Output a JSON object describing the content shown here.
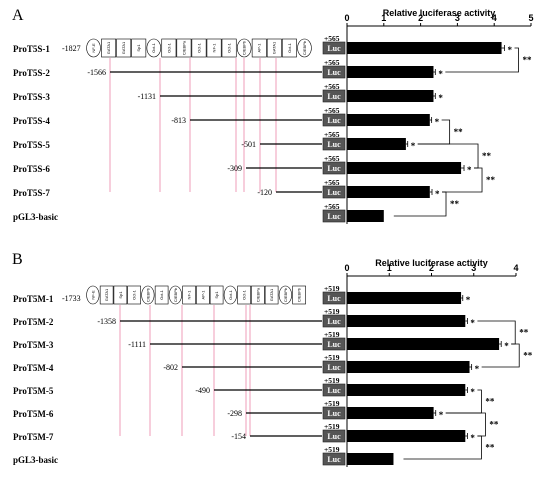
{
  "chart_data": [
    {
      "type": "bar",
      "panel_label": "A",
      "title": "Relative luciferase activity",
      "xlim": [
        0,
        5
      ],
      "ticks": [
        "0",
        "1",
        "2",
        "3",
        "4",
        "5"
      ],
      "reporter": "Luc",
      "end_label": "+565",
      "categories": [
        "ProT5S-1",
        "ProT5S-2",
        "ProT5S-3",
        "ProT5S-4",
        "ProT5S-5",
        "ProT5S-6",
        "ProT5S-7",
        "pGL3-basic"
      ],
      "start_positions": [
        "-1827",
        "-1566",
        "-1131",
        "-813",
        "-501",
        "-309",
        "-120",
        ""
      ],
      "values": [
        4.2,
        2.35,
        2.35,
        2.25,
        1.6,
        3.1,
        2.25,
        1.0
      ],
      "errors": [
        0.08,
        0.05,
        0.05,
        0.05,
        0.05,
        0.08,
        0.06,
        0.0
      ],
      "bar_marks": [
        "*",
        "*",
        "*",
        "*",
        "*",
        "*",
        "*",
        ""
      ],
      "significance_pairs": [
        {
          "from": 0,
          "to": 1,
          "label": "**"
        },
        {
          "from": 3,
          "to": 4,
          "label": "**"
        },
        {
          "from": 4,
          "to": 5,
          "label": "**"
        },
        {
          "from": 5,
          "to": 6,
          "label": "**"
        },
        {
          "from": 6,
          "to": 7,
          "label": "**"
        }
      ],
      "binding_sites": [
        "NF-E",
        "GATA1",
        "GATA1",
        "Sp1",
        "Oct-1",
        "Oct-1",
        "C/EBPa",
        "Oct-1",
        "NF-1",
        "Oct-1",
        "C/EBPb",
        "AP-1",
        "GATA1",
        "Oct-1",
        "C/EBPb"
      ]
    },
    {
      "type": "bar",
      "panel_label": "B",
      "title": "Relative luciferase activity",
      "xlim": [
        0,
        4
      ],
      "ticks": [
        "0",
        "1",
        "2",
        "3",
        "4"
      ],
      "reporter": "Luc",
      "end_label": "+519",
      "categories": [
        "ProT5M-1",
        "ProT5M-2",
        "ProT5M-3",
        "ProT5M-4",
        "ProT5M-5",
        "ProT5M-6",
        "ProT5M-7",
        "pGL3-basic"
      ],
      "start_positions": [
        "-1733",
        "-1358",
        "-1111",
        "-802",
        "-490",
        "-298",
        "-154",
        ""
      ],
      "values": [
        2.7,
        2.8,
        3.6,
        2.9,
        2.8,
        2.05,
        2.8,
        1.1
      ],
      "errors": [
        0.04,
        0.05,
        0.05,
        0.05,
        0.05,
        0.05,
        0.05,
        0.0
      ],
      "bar_marks": [
        "*",
        "*",
        "*",
        "*",
        "*",
        "*",
        "*",
        ""
      ],
      "significance_pairs": [
        {
          "from": 1,
          "to": 2,
          "label": "**"
        },
        {
          "from": 2,
          "to": 3,
          "label": "**"
        },
        {
          "from": 4,
          "to": 5,
          "label": "**"
        },
        {
          "from": 5,
          "to": 6,
          "label": "**"
        },
        {
          "from": 6,
          "to": 7,
          "label": "**"
        }
      ],
      "binding_sites": [
        "NF-E",
        "GATA1",
        "Sp1",
        "Oct-1",
        "C/EBPb",
        "Oct-1",
        "C/EBPb",
        "NF-1",
        "AP-1",
        "Sp1",
        "Oct-1",
        "Oct-1",
        "C/EBPa",
        "GATA1",
        "C/EBPb",
        "C/EBPb"
      ]
    }
  ]
}
